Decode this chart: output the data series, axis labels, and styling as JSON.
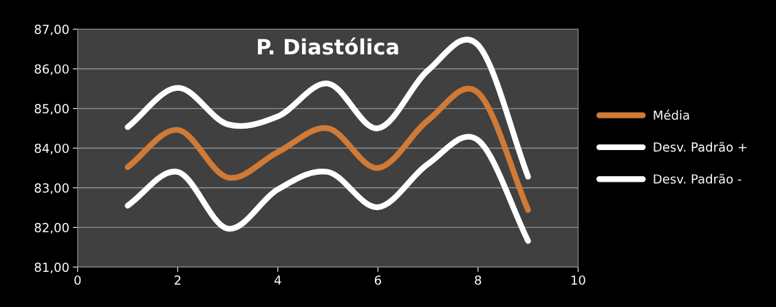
{
  "chart_data": {
    "type": "line",
    "title": "P. Diastólica",
    "x": [
      1,
      2,
      3,
      4,
      5,
      6,
      7,
      8,
      9
    ],
    "series": [
      {
        "name": "Média",
        "color": "#d07a36",
        "values": [
          83.52,
          84.46,
          83.26,
          83.9,
          84.5,
          83.5,
          84.7,
          85.4,
          82.44
        ]
      },
      {
        "name": "Desv. Padrão +",
        "color": "#ffffff",
        "values": [
          84.53,
          85.52,
          84.6,
          84.8,
          85.63,
          84.5,
          85.96,
          86.6,
          83.28
        ]
      },
      {
        "name": "Desv. Padrão -",
        "color": "#ffffff",
        "values": [
          82.55,
          83.4,
          81.97,
          82.96,
          83.4,
          82.51,
          83.6,
          84.2,
          81.66
        ]
      }
    ],
    "xlim": [
      0,
      10
    ],
    "xticks": [
      0,
      2,
      4,
      6,
      8,
      10
    ],
    "ylim": [
      81,
      87
    ],
    "yticks": [
      {
        "value": 81,
        "label": "81,00"
      },
      {
        "value": 82,
        "label": "82,00"
      },
      {
        "value": 83,
        "label": "83,00"
      },
      {
        "value": 84,
        "label": "84,00"
      },
      {
        "value": 85,
        "label": "85,00"
      },
      {
        "value": 86,
        "label": "86,00"
      },
      {
        "value": 87,
        "label": "87,00"
      }
    ],
    "grid": "y",
    "legend": "right",
    "marker": "none",
    "line_style": "solid"
  }
}
